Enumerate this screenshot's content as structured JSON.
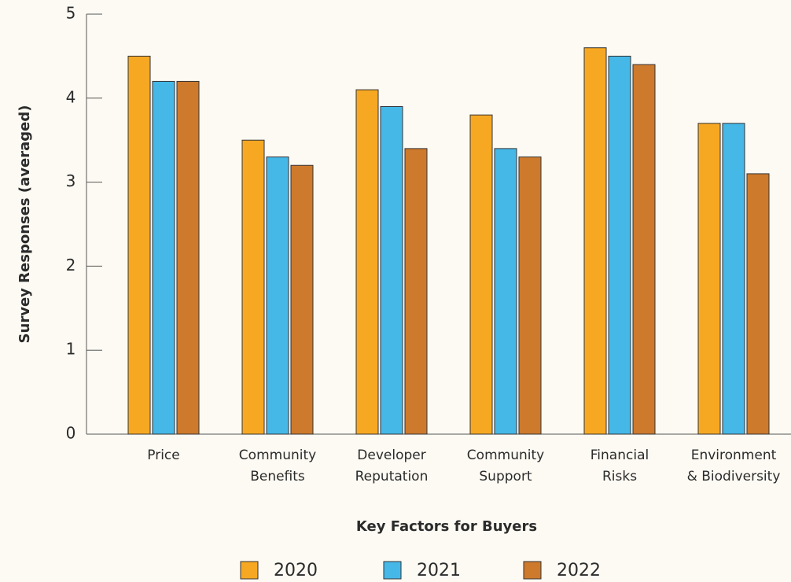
{
  "chart_data": {
    "type": "bar",
    "x_label": "Key Factors for Buyers",
    "y_label": "Survey Responses (averaged)",
    "categories": [
      "Price",
      "Community\nBenefits",
      "Developer\nReputation",
      "Community\nSupport",
      "Financial\nRisks",
      "Environment\n& Biodiversity"
    ],
    "series": [
      {
        "name": "2020",
        "color": "#f7a823",
        "values": [
          4.5,
          3.5,
          4.1,
          3.8,
          4.6,
          3.7
        ]
      },
      {
        "name": "2021",
        "color": "#45b8e8",
        "values": [
          4.2,
          3.3,
          3.9,
          3.4,
          4.5,
          3.7
        ]
      },
      {
        "name": "2022",
        "color": "#cd7a2c",
        "values": [
          4.2,
          3.2,
          3.4,
          3.3,
          4.4,
          3.1
        ]
      }
    ],
    "ylim": [
      0,
      5
    ],
    "yticks": [
      0,
      1,
      2,
      3,
      4,
      5
    ],
    "legend": "bottom"
  }
}
